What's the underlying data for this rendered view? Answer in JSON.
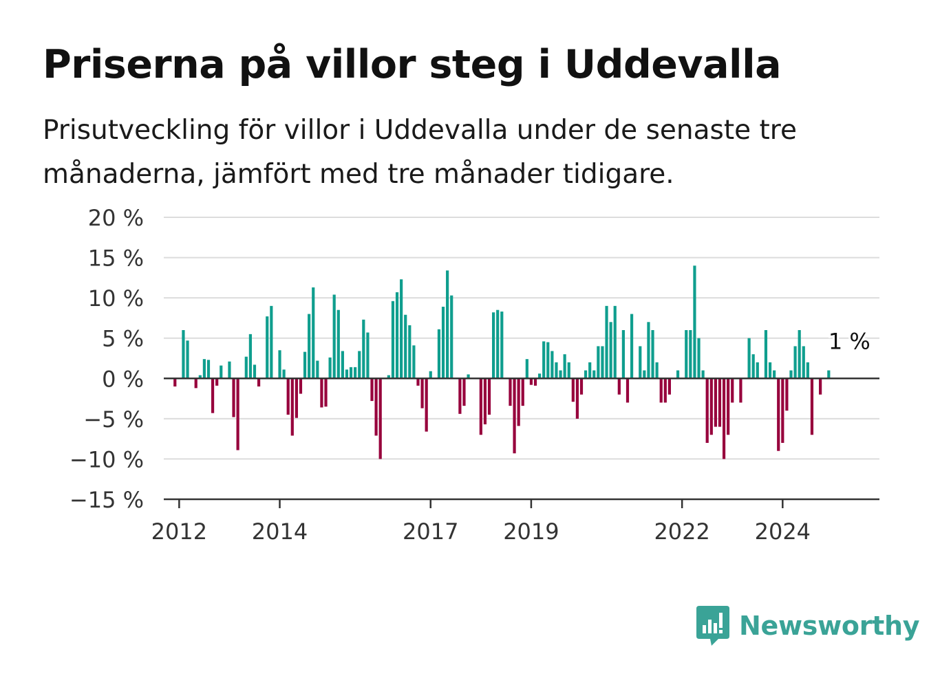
{
  "title": "Priserna på villor steg i Uddevalla",
  "subtitle": "Prisutveckling för villor i Uddevalla under de senaste tre månaderna, jämfört med tre månader tidigare.",
  "brand": {
    "name": "Newsworthy"
  },
  "colors": {
    "positive": "#0f9e8e",
    "negative": "#97003c",
    "grid": "#dcdcdc",
    "axis": "#333333",
    "brand": "#3aa397"
  },
  "chart_data": {
    "type": "bar",
    "title": "Priserna på villor steg i Uddevalla",
    "subtitle": "Prisutveckling för villor i Uddevalla under de senaste tre månaderna, jämfört med tre månader tidigare.",
    "xlabel": "",
    "ylabel": "",
    "ylim": [
      -15,
      20
    ],
    "yticks": [
      -15,
      -10,
      -5,
      0,
      5,
      10,
      15,
      20
    ],
    "ytick_labels": [
      "−15 %",
      "−10 %",
      "−5 %",
      "0 %",
      "5 %",
      "10 %",
      "15 %",
      "20 %"
    ],
    "xticks": [
      {
        "label": "2012",
        "year": 2012
      },
      {
        "label": "2014",
        "year": 2014
      },
      {
        "label": "2017",
        "year": 2017
      },
      {
        "label": "2019",
        "year": 2019
      },
      {
        "label": "2022",
        "year": 2022
      },
      {
        "label": "2024",
        "year": 2024
      }
    ],
    "x_start": "2011-09",
    "x_end": "2025-06",
    "grid": true,
    "annotation": {
      "label": "1 %",
      "month": "2024-12",
      "value": 1
    },
    "series": [
      {
        "points": [
          [
            "2011-12",
            -1
          ],
          [
            "2012-01",
            0
          ],
          [
            "2012-02",
            6
          ],
          [
            "2012-03",
            4.7
          ],
          [
            "2012-04",
            0
          ],
          [
            "2012-05",
            -1.2
          ],
          [
            "2012-06",
            0.4
          ],
          [
            "2012-07",
            2.4
          ],
          [
            "2012-08",
            2.3
          ],
          [
            "2012-09",
            -4.3
          ],
          [
            "2012-10",
            -0.9
          ],
          [
            "2012-11",
            1.6
          ],
          [
            "2012-12",
            0
          ],
          [
            "2013-01",
            2.1
          ],
          [
            "2013-02",
            -4.8
          ],
          [
            "2013-03",
            -8.9
          ],
          [
            "2013-04",
            0
          ],
          [
            "2013-05",
            2.7
          ],
          [
            "2013-06",
            5.5
          ],
          [
            "2013-07",
            1.7
          ],
          [
            "2013-08",
            -1
          ],
          [
            "2013-09",
            0
          ],
          [
            "2013-10",
            7.7
          ],
          [
            "2013-11",
            9
          ],
          [
            "2013-12",
            0
          ],
          [
            "2014-01",
            3.5
          ],
          [
            "2014-02",
            1.1
          ],
          [
            "2014-03",
            -4.5
          ],
          [
            "2014-04",
            -7.1
          ],
          [
            "2014-05",
            -4.9
          ],
          [
            "2014-06",
            -1.9
          ],
          [
            "2014-07",
            3.3
          ],
          [
            "2014-08",
            8
          ],
          [
            "2014-09",
            11.3
          ],
          [
            "2014-10",
            2.2
          ],
          [
            "2014-11",
            -3.6
          ],
          [
            "2014-12",
            -3.5
          ],
          [
            "2015-01",
            2.6
          ],
          [
            "2015-02",
            10.4
          ],
          [
            "2015-03",
            8.5
          ],
          [
            "2015-04",
            3.4
          ],
          [
            "2015-05",
            1.1
          ],
          [
            "2015-06",
            1.4
          ],
          [
            "2015-07",
            1.4
          ],
          [
            "2015-08",
            3.4
          ],
          [
            "2015-09",
            7.3
          ],
          [
            "2015-10",
            5.7
          ],
          [
            "2015-11",
            -2.8
          ],
          [
            "2015-12",
            -7.1
          ],
          [
            "2016-01",
            -10
          ],
          [
            "2016-02",
            0
          ],
          [
            "2016-03",
            0.4
          ],
          [
            "2016-04",
            9.6
          ],
          [
            "2016-05",
            10.7
          ],
          [
            "2016-06",
            12.3
          ],
          [
            "2016-07",
            7.9
          ],
          [
            "2016-08",
            6.6
          ],
          [
            "2016-09",
            4.1
          ],
          [
            "2016-10",
            -0.9
          ],
          [
            "2016-11",
            -3.7
          ],
          [
            "2016-12",
            -6.6
          ],
          [
            "2017-01",
            0.9
          ],
          [
            "2017-02",
            0
          ],
          [
            "2017-03",
            6.1
          ],
          [
            "2017-04",
            8.9
          ],
          [
            "2017-05",
            13.4
          ],
          [
            "2017-06",
            10.3
          ],
          [
            "2017-07",
            0
          ],
          [
            "2017-08",
            -4.4
          ],
          [
            "2017-09",
            -3.4
          ],
          [
            "2017-10",
            0.5
          ],
          [
            "2017-11",
            0
          ],
          [
            "2017-12",
            0
          ],
          [
            "2018-01",
            -7
          ],
          [
            "2018-02",
            -5.7
          ],
          [
            "2018-03",
            -4.5
          ],
          [
            "2018-04",
            8.2
          ],
          [
            "2018-05",
            8.5
          ],
          [
            "2018-06",
            8.3
          ],
          [
            "2018-07",
            0
          ],
          [
            "2018-08",
            -3.4
          ],
          [
            "2018-09",
            -9.3
          ],
          [
            "2018-10",
            -5.9
          ],
          [
            "2018-11",
            -3.4
          ],
          [
            "2018-12",
            2.4
          ],
          [
            "2019-01",
            -0.8
          ],
          [
            "2019-02",
            -0.9
          ],
          [
            "2019-03",
            0.6
          ],
          [
            "2019-04",
            4.6
          ],
          [
            "2019-05",
            4.5
          ],
          [
            "2019-06",
            3.4
          ],
          [
            "2019-07",
            2
          ],
          [
            "2019-08",
            1
          ],
          [
            "2019-09",
            3
          ],
          [
            "2019-10",
            2
          ],
          [
            "2019-11",
            -2.9
          ],
          [
            "2019-12",
            -5
          ],
          [
            "2020-01",
            -2
          ],
          [
            "2020-02",
            1
          ],
          [
            "2020-03",
            2
          ],
          [
            "2020-04",
            1
          ],
          [
            "2020-05",
            4
          ],
          [
            "2020-06",
            4
          ],
          [
            "2020-07",
            9
          ],
          [
            "2020-08",
            7
          ],
          [
            "2020-09",
            9
          ],
          [
            "2020-10",
            -2
          ],
          [
            "2020-11",
            6
          ],
          [
            "2020-12",
            -3
          ],
          [
            "2021-01",
            8
          ],
          [
            "2021-02",
            0
          ],
          [
            "2021-03",
            4
          ],
          [
            "2021-04",
            1
          ],
          [
            "2021-05",
            7
          ],
          [
            "2021-06",
            6
          ],
          [
            "2021-07",
            2
          ],
          [
            "2021-08",
            -3
          ],
          [
            "2021-09",
            -3
          ],
          [
            "2021-10",
            -2
          ],
          [
            "2021-11",
            0
          ],
          [
            "2021-12",
            1
          ],
          [
            "2022-01",
            0
          ],
          [
            "2022-02",
            6
          ],
          [
            "2022-03",
            6
          ],
          [
            "2022-04",
            14
          ],
          [
            "2022-05",
            5
          ],
          [
            "2022-06",
            1
          ],
          [
            "2022-07",
            -8
          ],
          [
            "2022-08",
            -7
          ],
          [
            "2022-09",
            -6
          ],
          [
            "2022-10",
            -6
          ],
          [
            "2022-11",
            -10
          ],
          [
            "2022-12",
            -7
          ],
          [
            "2023-01",
            -3
          ],
          [
            "2023-02",
            0
          ],
          [
            "2023-03",
            -3
          ],
          [
            "2023-04",
            0
          ],
          [
            "2023-05",
            5
          ],
          [
            "2023-06",
            3
          ],
          [
            "2023-07",
            2
          ],
          [
            "2023-08",
            0
          ],
          [
            "2023-09",
            6
          ],
          [
            "2023-10",
            2
          ],
          [
            "2023-11",
            1
          ],
          [
            "2023-12",
            -9
          ],
          [
            "2024-01",
            -8
          ],
          [
            "2024-02",
            -4
          ],
          [
            "2024-03",
            1
          ],
          [
            "2024-04",
            4
          ],
          [
            "2024-05",
            6
          ],
          [
            "2024-06",
            4
          ],
          [
            "2024-07",
            2
          ],
          [
            "2024-08",
            -7
          ],
          [
            "2024-09",
            0
          ],
          [
            "2024-10",
            -2
          ],
          [
            "2024-11",
            0
          ],
          [
            "2024-12",
            1
          ]
        ]
      }
    ]
  }
}
